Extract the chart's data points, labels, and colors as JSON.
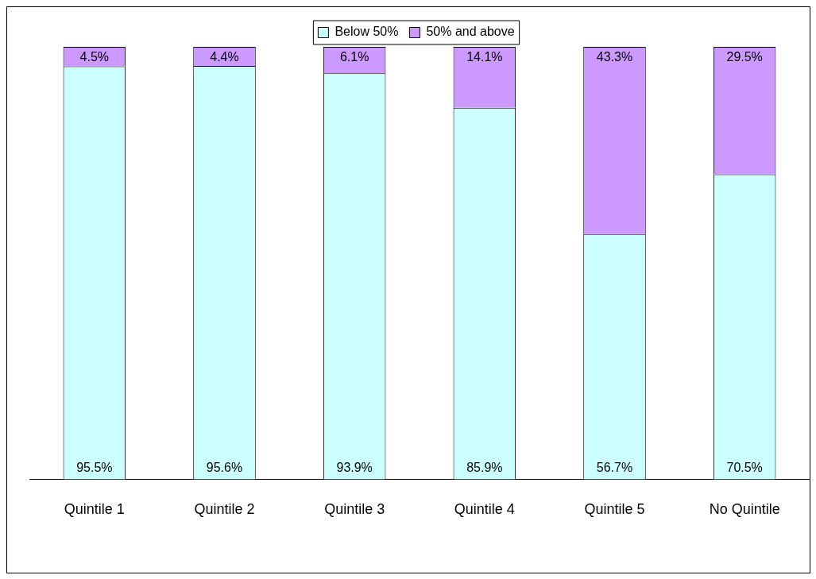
{
  "chart_data": {
    "type": "bar",
    "stacked": true,
    "categories": [
      "Quintile 1",
      "Quintile 2",
      "Quintile 3",
      "Quintile 4",
      "Quintile 5",
      "No Quintile"
    ],
    "series": [
      {
        "name": "Below 50%",
        "color": "#ccffff",
        "values": [
          95.5,
          95.6,
          93.9,
          85.9,
          56.7,
          70.5
        ],
        "value_labels": [
          "95.5%",
          "95.6%",
          "93.9%",
          "85.9%",
          "56.7%",
          "70.5%"
        ]
      },
      {
        "name": "50% and above",
        "color": "#cc99ff",
        "values": [
          4.5,
          4.4,
          6.1,
          14.1,
          43.3,
          29.5
        ],
        "value_labels": [
          "4.5%",
          "4.4%",
          "6.1%",
          "14.1%",
          "43.3%",
          "29.5%"
        ]
      }
    ],
    "ylim": [
      0,
      100
    ],
    "tick_labels": "x",
    "grid": false,
    "legend": "top"
  }
}
